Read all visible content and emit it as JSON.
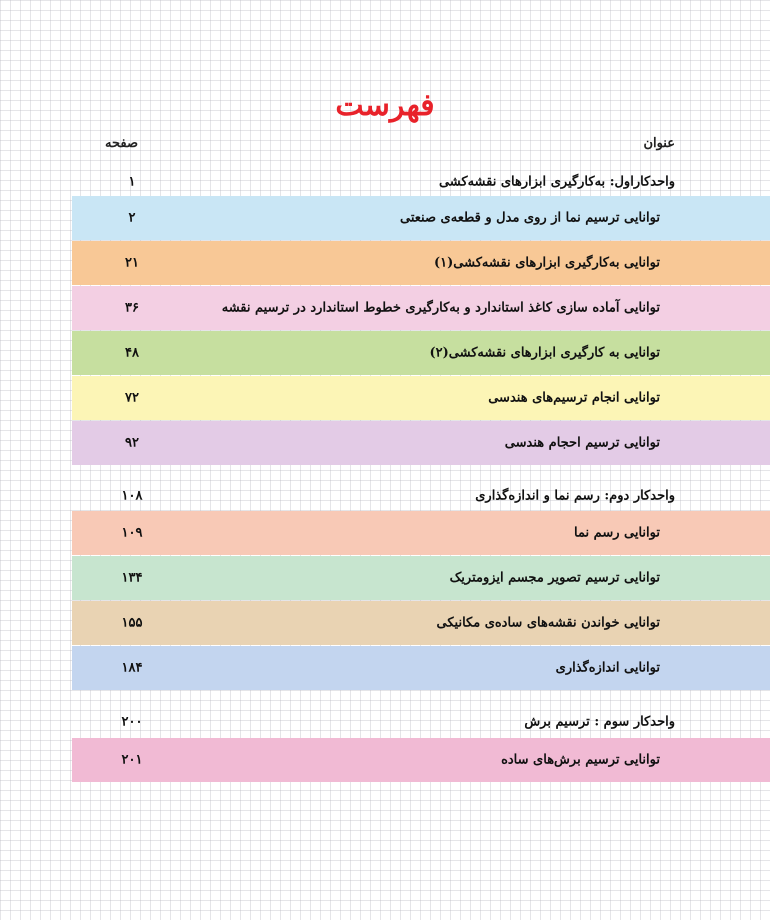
{
  "title": "فهرست",
  "header": {
    "title_col": "عنوان",
    "page_col": "صفحه"
  },
  "entries": [
    {
      "type": "unit",
      "text": "واحدکاراول: به‌کارگیری ابزارهای نقشه‌کشی",
      "page": "۱",
      "color": ""
    },
    {
      "type": "item",
      "text": "توانایی ترسیم نما از روی مدل و قطعه‌ی صنعتی",
      "page": "۲",
      "color": "#c9e6f5"
    },
    {
      "type": "item",
      "text": "توانایی به‌کارگیری ابزارهای نقشه‌کشی(۱)",
      "page": "۲۱",
      "color": "#f8c896"
    },
    {
      "type": "item",
      "text": "توانایی آماده سازی کاغذ استاندارد و به‌کارگیری خطوط استاندارد در ترسیم نقشه",
      "page": "۳۶",
      "color": "#f3cfe3"
    },
    {
      "type": "item",
      "text": "توانایی به کارگیری ابزارهای نقشه‌کشی(۲)",
      "page": "۴۸",
      "color": "#c6df9f"
    },
    {
      "type": "item",
      "text": "توانایی انجام ترسیم‌های هندسی",
      "page": "۷۲",
      "color": "#fcf5b6"
    },
    {
      "type": "item",
      "text": "توانایی ترسیم احجام هندسی",
      "page": "۹۲",
      "color": "#e3cbe6"
    },
    {
      "type": "unit",
      "text": "واحدکار دوم: رسم نما و اندازه‌گذاری",
      "page": "۱۰۸",
      "color": ""
    },
    {
      "type": "item",
      "text": "توانایی رسم نما",
      "page": "۱۰۹",
      "color": "#f8c9b6"
    },
    {
      "type": "item",
      "text": "توانایی ترسیم تصویر مجسم ایزومتریک",
      "page": "۱۳۴",
      "color": "#c7e5cf"
    },
    {
      "type": "item",
      "text": "توانایی خواندن نقشه‌های ساده‌ی مکانیکی",
      "page": "۱۵۵",
      "color": "#e9d3b3"
    },
    {
      "type": "item",
      "text": "توانایی اندازه‌گذاری",
      "page": "۱۸۴",
      "color": "#c3d5ef"
    },
    {
      "type": "unit",
      "text": "واحدکار سوم : ترسیم برش",
      "page": "۲۰۰",
      "color": ""
    },
    {
      "type": "item",
      "text": "توانایی ترسیم برش‌های ساده",
      "page": "۲۰۱",
      "color": "#f1bad4"
    }
  ]
}
